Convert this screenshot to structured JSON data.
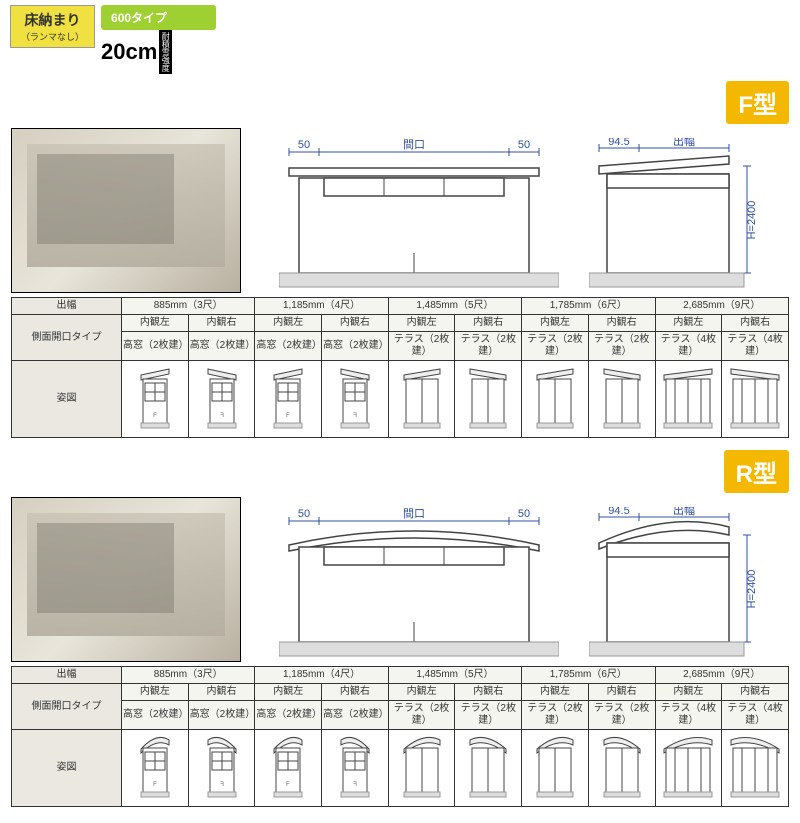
{
  "header": {
    "badge_main": "床納まり",
    "badge_main_sub": "（ランマなし）",
    "badge_type": "600タイプ",
    "badge_cm": "20cm",
    "badge_cm_note": "耐積雪強度"
  },
  "dim_labels": {
    "front_50": "50",
    "front_maguchi": "間口",
    "side_945": "94.5",
    "side_dehaba": "出幅",
    "side_h": "H=2400"
  },
  "colors": {
    "accent_yellow": "#f5b800",
    "accent_green": "#9dd030",
    "accent_badge": "#f0e040",
    "dim_blue": "#3050a0",
    "line": "#444444",
    "cell_bg": "#f5f5f0",
    "header_bg": "#eae8e0"
  },
  "row_labels": {
    "dehaba": "出幅",
    "side_open": "側面開口タイプ",
    "shape": "姿図"
  },
  "sections": [
    {
      "type_label": "F型",
      "roof": "flat"
    },
    {
      "type_label": "R型",
      "roof": "curved"
    }
  ],
  "widths": [
    {
      "mm": "885mm（3尺）",
      "left": "内観左",
      "right": "内観右",
      "lspec": "高窓（2枚建）",
      "rspec": "高窓（2枚建）",
      "style": "high"
    },
    {
      "mm": "1,185mm（4尺）",
      "left": "内観左",
      "right": "内観右",
      "lspec": "高窓（2枚建）",
      "rspec": "高窓（2枚建）",
      "style": "high"
    },
    {
      "mm": "1,485mm（5尺）",
      "left": "内観左",
      "right": "内観右",
      "lspec": "テラス（2枚建）",
      "rspec": "テラス（2枚建）",
      "style": "terrace2"
    },
    {
      "mm": "1,785mm（6尺）",
      "left": "内観左",
      "right": "内観右",
      "lspec": "テラス（2枚建）",
      "rspec": "テラス（2枚建）",
      "style": "terrace2"
    },
    {
      "mm": "2,685mm（9尺）",
      "left": "内観左",
      "right": "内観右",
      "lspec": "テラス（4枚建）",
      "rspec": "テラス（4枚建）",
      "style": "terrace4"
    }
  ]
}
